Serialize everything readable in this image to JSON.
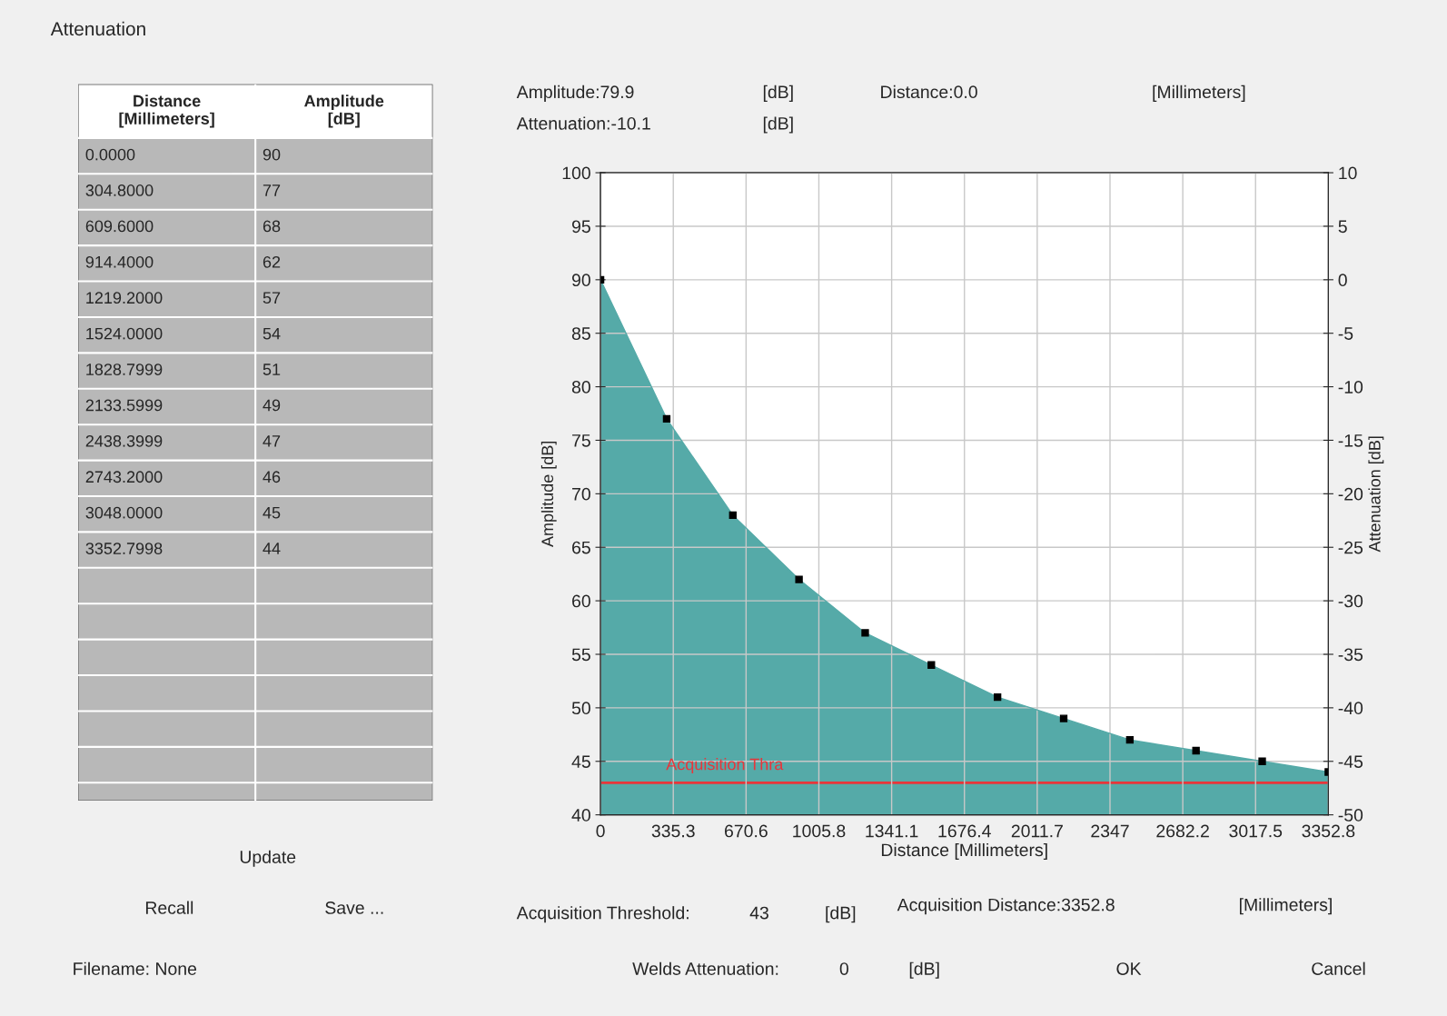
{
  "chart_data": {
    "type": "area",
    "title": "Attenuation",
    "xlabel": "Distance [Millimeters]",
    "ylabel": "Amplitude [dB]",
    "y2label": "Attenuation [dB]",
    "series": [
      {
        "color": "#55aaa8",
        "x": [
          0.0,
          304.8,
          609.6,
          914.4,
          1219.2,
          1524.0,
          1828.7999,
          2133.5999,
          2438.3999,
          2743.2,
          3048.0,
          3352.7998
        ],
        "values": [
          90,
          77,
          68,
          62,
          57,
          54,
          51,
          49,
          47,
          46,
          45,
          44
        ]
      }
    ],
    "marker": "square",
    "xlim": [
      0,
      3352.8
    ],
    "xticks": [
      0,
      {
        "value": 335.28,
        "label": "335.3"
      },
      {
        "value": 670.56,
        "label": "670.6"
      },
      {
        "value": 1005.84,
        "label": "1005.8"
      },
      {
        "value": 1341.12,
        "label": "1341.1"
      },
      {
        "value": 1676.4,
        "label": "1676.4"
      },
      {
        "value": 2011.68,
        "label": "2011.7"
      },
      {
        "value": 2346.96,
        "label": "2347"
      },
      {
        "value": 2682.24,
        "label": "2682.2"
      },
      {
        "value": 3017.52,
        "label": "3017.5"
      },
      3352.8
    ],
    "ylim": [
      40,
      100
    ],
    "yticks": [
      40,
      45,
      50,
      55,
      60,
      65,
      70,
      75,
      80,
      85,
      90,
      95,
      100
    ],
    "y2lim": [
      -50,
      10
    ],
    "y2ticks": [
      -50,
      -45,
      -40,
      -35,
      -30,
      -25,
      -20,
      -15,
      -10,
      -5,
      0,
      5,
      10
    ],
    "grid": true,
    "ref_lines": [
      {
        "axis": "y",
        "value": 43,
        "label": "Acquisition Thra",
        "color": "#e8353a"
      }
    ],
    "annotations": [
      "Amplitude:79.9",
      "[dB]",
      "Attenuation:-10.1",
      "[dB]",
      "Distance:0.0",
      "[Millimeters]",
      "Acquisition Threshold:",
      "43",
      "[dB]",
      "Acquisition Distance:3352.8",
      "[Millimeters]",
      "Welds Attenuation:",
      "0",
      "[dB]",
      "OK",
      "Cancel",
      "Update",
      "Recall",
      "Save ...",
      "Filename: None",
      "Distance\n[Millimeters]",
      "Amplitude\n[dB]",
      "0.0000",
      "90",
      "304.8000",
      "77",
      "609.6000",
      "68",
      "914.4000",
      "62",
      "1219.2000",
      "57",
      "1524.0000",
      "54",
      "1828.7999",
      "51",
      "2133.5999",
      "49",
      "2438.3999",
      "47",
      "2743.2000",
      "46",
      "3048.0000",
      "45",
      "3352.7998",
      "44"
    ]
  }
}
